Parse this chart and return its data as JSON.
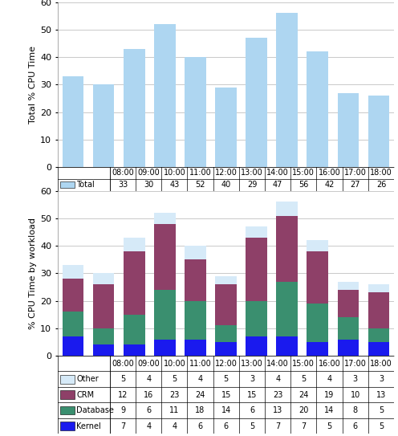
{
  "hours": [
    "08:00",
    "09:00",
    "10:00",
    "11:00",
    "12:00",
    "13:00",
    "14:00",
    "15:00",
    "16:00",
    "17:00",
    "18:00"
  ],
  "total": [
    33,
    30,
    43,
    52,
    40,
    29,
    47,
    56,
    42,
    27,
    26
  ],
  "other": [
    5,
    4,
    5,
    4,
    5,
    3,
    4,
    5,
    4,
    3,
    3
  ],
  "crm": [
    12,
    16,
    23,
    24,
    15,
    15,
    23,
    24,
    19,
    10,
    13
  ],
  "database": [
    9,
    6,
    11,
    18,
    14,
    6,
    13,
    20,
    14,
    8,
    5
  ],
  "kernel": [
    7,
    4,
    4,
    6,
    6,
    5,
    7,
    7,
    5,
    6,
    5
  ],
  "bar_color_total": "#aed6f1",
  "bar_color_other": "#d6eaf8",
  "bar_color_crm": "#8e4068",
  "bar_color_database": "#3a8f6f",
  "bar_color_kernel": "#1a1aee",
  "ylabel_top": "Total % CPU Time",
  "ylabel_bot": "% CPU Time by workload",
  "ylim": [
    0,
    60
  ],
  "yticks": [
    0,
    10,
    20,
    30,
    40,
    50,
    60
  ],
  "table1_label": "Total",
  "background": "#ffffff",
  "grid_color": "#c0c0c0",
  "table_border": "#000000",
  "table_rows": [
    "Other",
    "CRM",
    "Database",
    "Kernel"
  ]
}
